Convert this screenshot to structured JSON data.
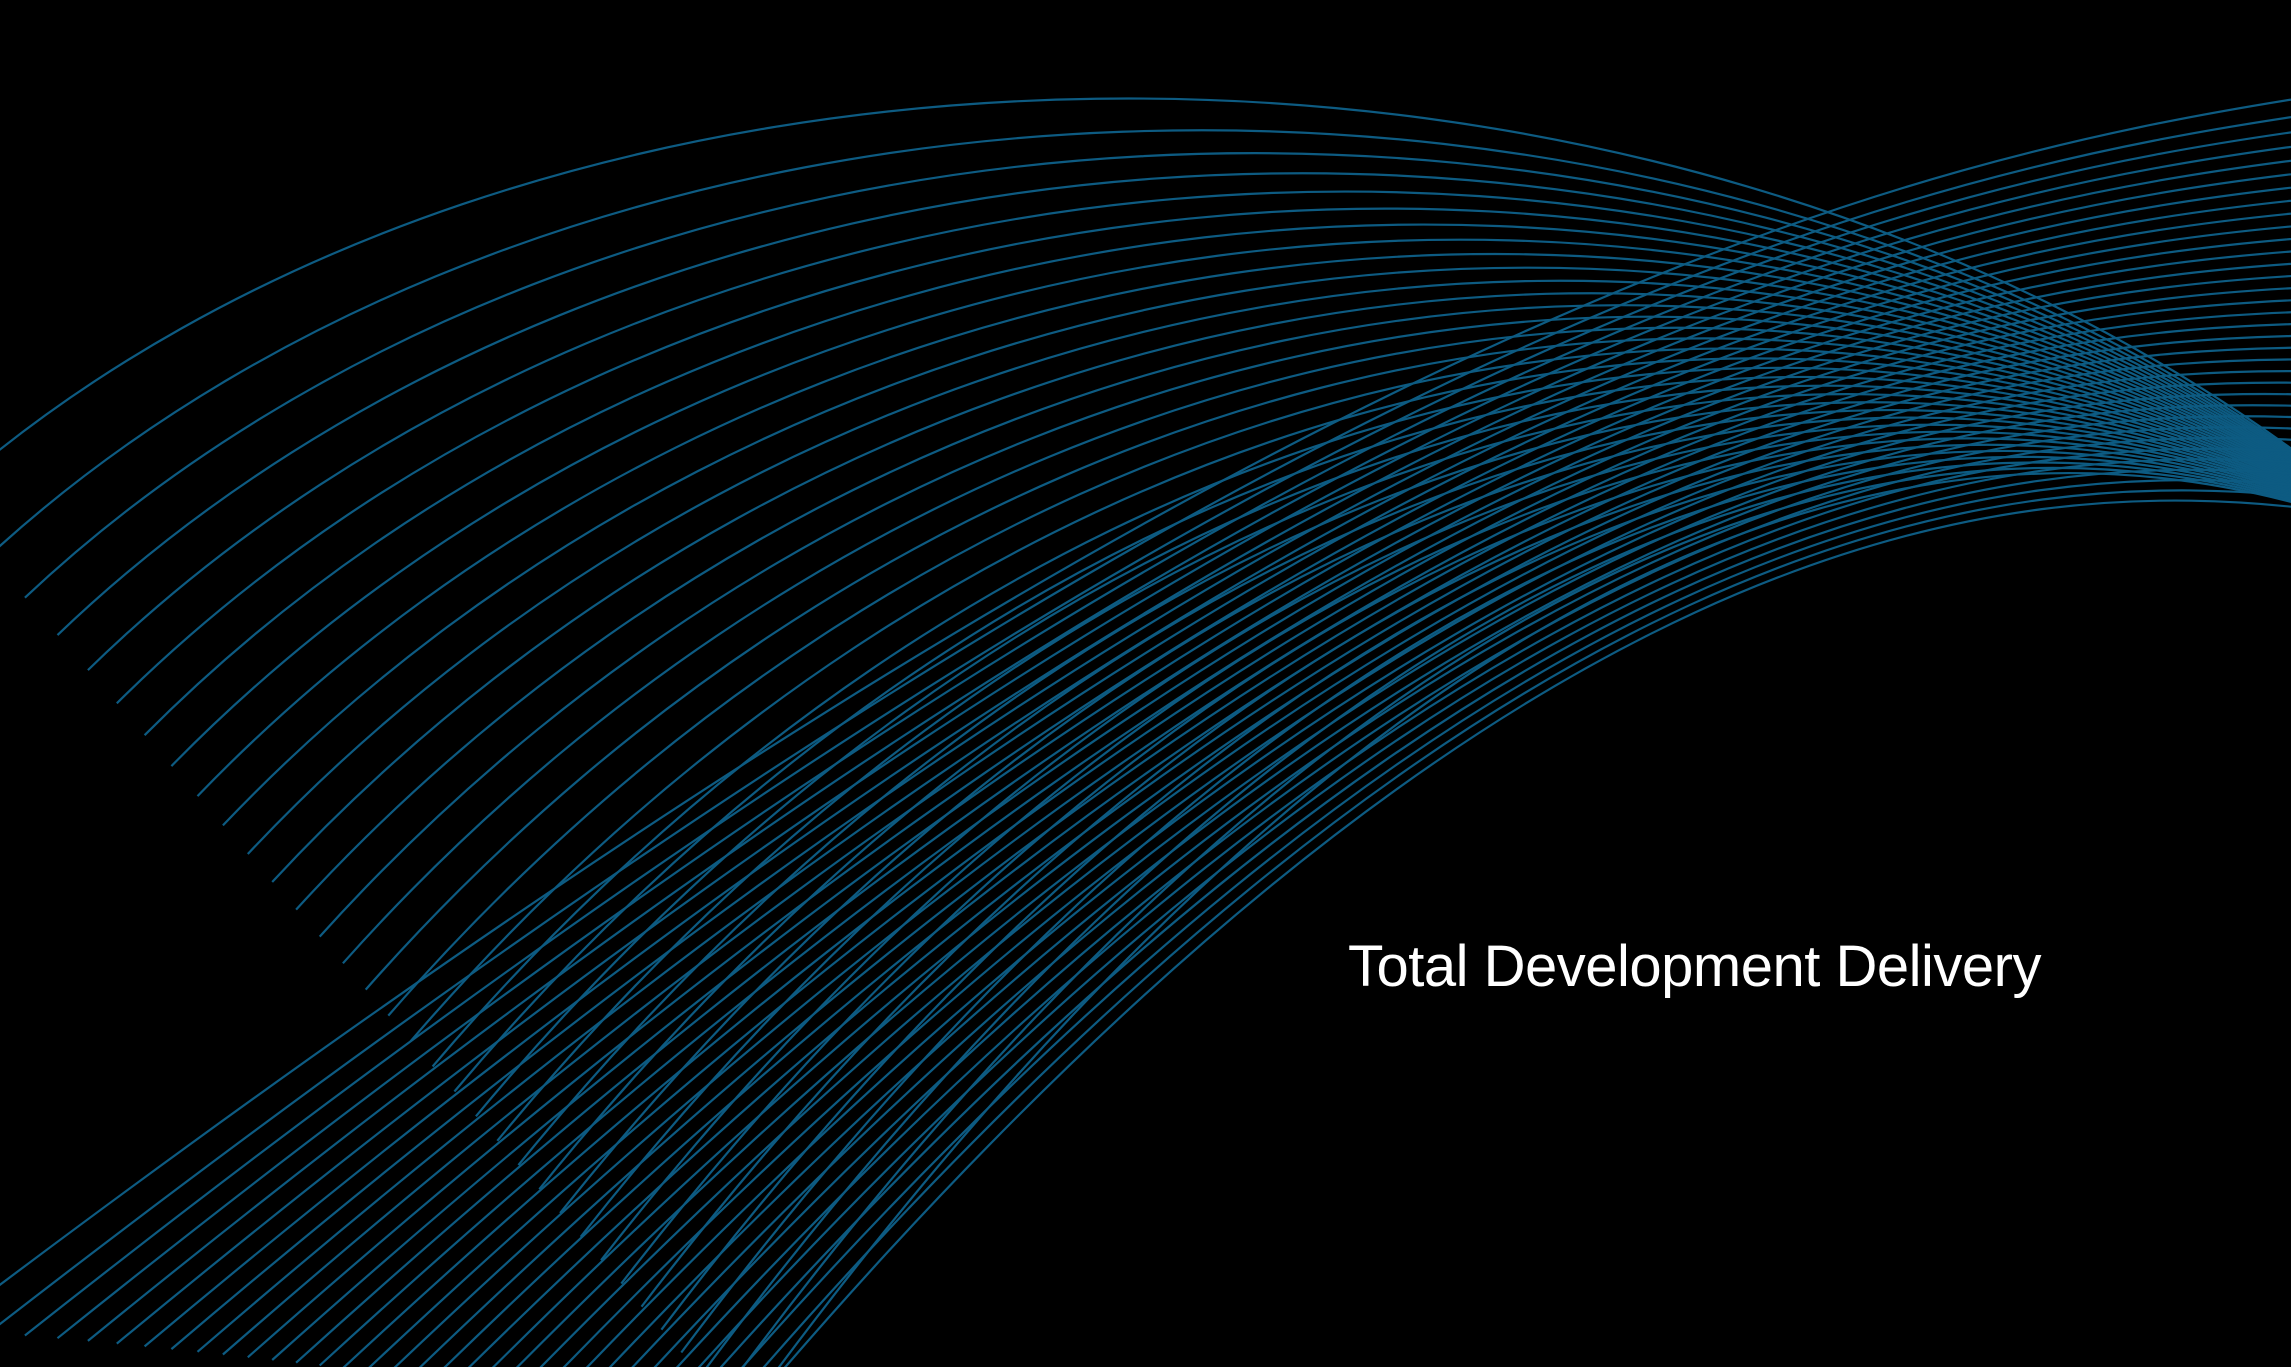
{
  "tagline": "Total Development Delivery",
  "colors": {
    "background": "#000000",
    "wave_line": "#0d5b82",
    "text": "#ffffff"
  },
  "artwork": {
    "background_graphic": "blue-wave-lines-graphic"
  }
}
